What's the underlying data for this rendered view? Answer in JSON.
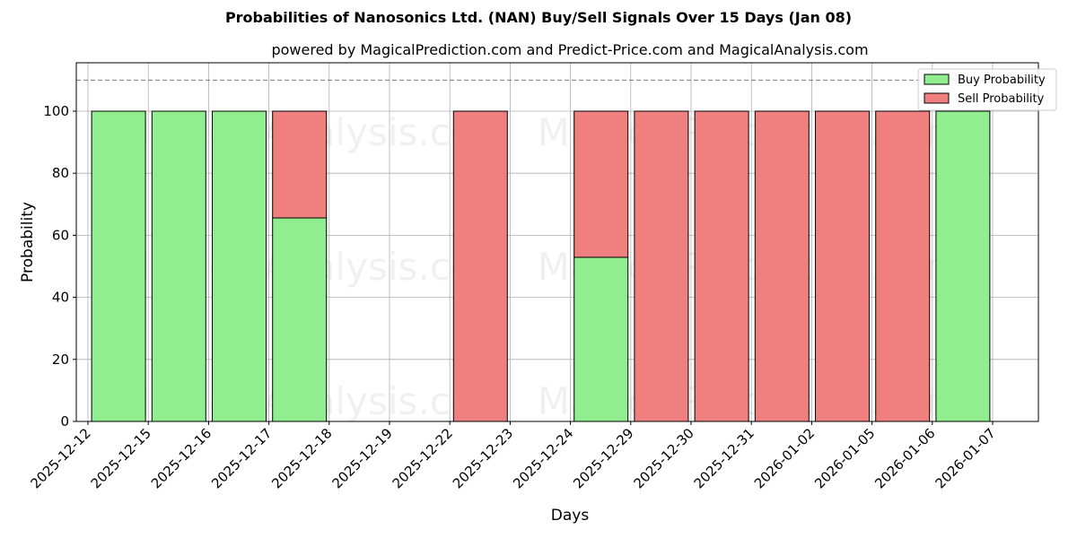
{
  "title": "Probabilities of Nanosonics Ltd. (NAN) Buy/Sell Signals Over 15 Days (Jan 08)",
  "subtitle": "powered by MagicalPrediction.com and Predict-Price.com and MagicalAnalysis.com",
  "colors": {
    "buy": "#90ee90",
    "sell": "#f08080"
  },
  "chart_data": {
    "type": "bar",
    "stacked": true,
    "title": "Probabilities of Nanosonics Ltd. (NAN) Buy/Sell Signals Over 15 Days (Jan 08)",
    "subtitle": "powered by MagicalPrediction.com and Predict-Price.com and MagicalAnalysis.com",
    "xlabel": "Days",
    "ylabel": "Probability",
    "ylim": [
      0,
      115
    ],
    "yticks": [
      0,
      20,
      40,
      60,
      80,
      100
    ],
    "reference_line": 110,
    "grid": true,
    "legend_position": "upper right",
    "tick_labels": [
      "2025-12-12",
      "2025-12-15",
      "2025-12-16",
      "2025-12-17",
      "2025-12-18",
      "2025-12-19",
      "2025-12-22",
      "2025-12-23",
      "2025-12-24",
      "2025-12-29",
      "2025-12-30",
      "2025-12-31",
      "2026-01-02",
      "2026-01-05",
      "2026-01-06",
      "2026-01-07"
    ],
    "categories": [
      "2025-12-12",
      "2025-12-15",
      "2025-12-16",
      "2025-12-17",
      "2025-12-19",
      "2025-12-22",
      "2025-12-23",
      "2025-12-24",
      "2025-12-29",
      "2025-12-30",
      "2025-12-31",
      "2026-01-02",
      "2026-01-05",
      "2026-01-06",
      "2026-01-07"
    ],
    "series": [
      {
        "name": "Buy Probability",
        "values": [
          100,
          100,
          100,
          65.6,
          0,
          0,
          0,
          0,
          52.9,
          0,
          0,
          0,
          0,
          0,
          100
        ]
      },
      {
        "name": "Sell Probability",
        "values": [
          0,
          0,
          0,
          34.4,
          0,
          0,
          100,
          0,
          47.1,
          100,
          100,
          100,
          100,
          100,
          0
        ]
      }
    ],
    "bar_slots": [
      1,
      2,
      3,
      4,
      5,
      6,
      7,
      8,
      9,
      10,
      11,
      12,
      13,
      14,
      15
    ]
  },
  "watermarks": [
    "MagicalAnalysis.com",
    "MagicalPrediction.com"
  ]
}
